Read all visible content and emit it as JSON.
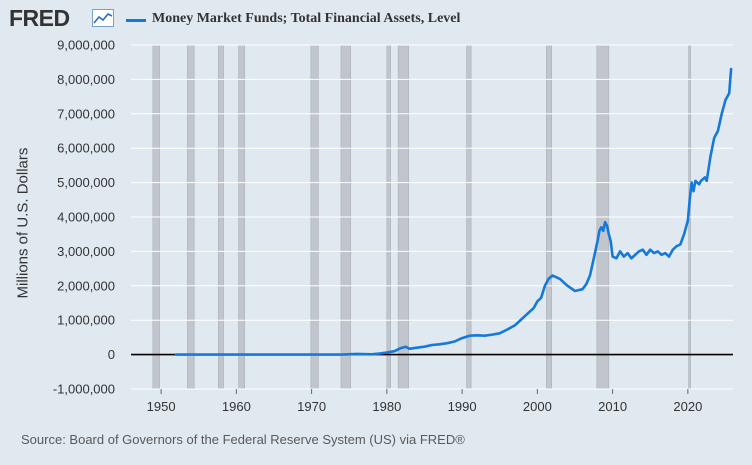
{
  "header": {
    "logo_text": "FRED",
    "logo_icon": "line-chart-icon"
  },
  "chart_data": {
    "type": "line",
    "title": "",
    "xlabel": "",
    "ylabel": "Millions of U.S. Dollars",
    "xlim": [
      1946,
      2026
    ],
    "ylim": [
      -1000000,
      9000000
    ],
    "x_ticks": [
      1950,
      1960,
      1970,
      1980,
      1990,
      2000,
      2010,
      2020
    ],
    "y_ticks": [
      -1000000,
      0,
      1000000,
      2000000,
      3000000,
      4000000,
      5000000,
      6000000,
      7000000,
      8000000,
      9000000
    ],
    "y_tick_labels": [
      "-1,000,000",
      "0",
      "1,000,000",
      "2,000,000",
      "3,000,000",
      "4,000,000",
      "5,000,000",
      "6,000,000",
      "7,000,000",
      "8,000,000",
      "9,000,000"
    ],
    "grid": "horizontal",
    "legend_position": "top",
    "recessions": [
      [
        1948.9,
        1949.8
      ],
      [
        1953.5,
        1954.4
      ],
      [
        1957.6,
        1958.3
      ],
      [
        1960.3,
        1961.1
      ],
      [
        1969.9,
        1970.9
      ],
      [
        1973.9,
        1975.2
      ],
      [
        1980.0,
        1980.5
      ],
      [
        1981.5,
        1982.9
      ],
      [
        1990.6,
        1991.2
      ],
      [
        2001.2,
        2001.9
      ],
      [
        2007.9,
        2009.5
      ],
      [
        2020.1,
        2020.3
      ]
    ],
    "series": [
      {
        "name": "Money Market Funds; Total Financial Assets, Level",
        "color": "#1679d9",
        "x": [
          1952,
          1960,
          1970,
          1974,
          1976,
          1978,
          1979,
          1980,
          1981,
          1981.75,
          1982.5,
          1983,
          1984,
          1985,
          1986,
          1987,
          1988,
          1989,
          1990,
          1991,
          1992,
          1993,
          1994,
          1995,
          1996,
          1997,
          1998,
          1999,
          1999.5,
          2000,
          2000.5,
          2001,
          2001.5,
          2002,
          2002.5,
          2003,
          2004,
          2005,
          2006,
          2006.5,
          2007,
          2007.5,
          2008,
          2008.25,
          2008.5,
          2008.75,
          2009,
          2009.25,
          2009.5,
          2009.75,
          2010,
          2010.5,
          2011,
          2011.5,
          2012,
          2012.5,
          2013,
          2013.5,
          2014,
          2014.5,
          2015,
          2015.5,
          2016,
          2016.5,
          2017,
          2017.5,
          2018,
          2018.5,
          2019,
          2019.5,
          2020,
          2020.25,
          2020.5,
          2020.75,
          2021,
          2021.25,
          2021.5,
          2021.75,
          2022,
          2022.25,
          2022.5,
          2023,
          2023.5,
          2024,
          2024.5,
          2025,
          2025.5,
          2025.75
        ],
        "y": [
          0,
          0,
          0,
          0,
          20000,
          10000,
          30000,
          60000,
          100000,
          180000,
          230000,
          170000,
          200000,
          230000,
          280000,
          300000,
          330000,
          380000,
          480000,
          550000,
          560000,
          550000,
          580000,
          620000,
          730000,
          850000,
          1050000,
          1250000,
          1350000,
          1550000,
          1650000,
          2000000,
          2200000,
          2300000,
          2250000,
          2200000,
          2000000,
          1850000,
          1900000,
          2050000,
          2300000,
          2800000,
          3300000,
          3600000,
          3700000,
          3600000,
          3850000,
          3750000,
          3500000,
          3300000,
          2850000,
          2800000,
          3000000,
          2850000,
          2950000,
          2800000,
          2900000,
          3000000,
          3050000,
          2900000,
          3050000,
          2950000,
          3000000,
          2900000,
          2950000,
          2850000,
          3050000,
          3150000,
          3200000,
          3500000,
          3900000,
          4500000,
          5000000,
          4750000,
          5050000,
          5000000,
          4950000,
          5050000,
          5100000,
          5150000,
          5050000,
          5750000,
          6300000,
          6500000,
          7000000,
          7400000,
          7600000,
          8300000
        ]
      }
    ]
  },
  "footer": {
    "source": "Source: Board of Governors of the Federal Reserve System (US) via FRED®"
  }
}
